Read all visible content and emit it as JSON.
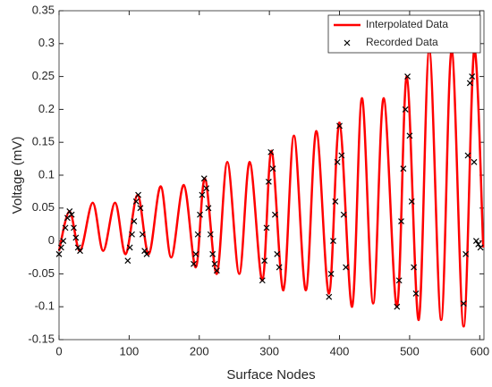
{
  "chart_data": {
    "type": "line_scatter",
    "xlabel": "Surface Nodes",
    "ylabel": "Voltage (mV)",
    "xlim": [
      0,
      606
    ],
    "xticks": [
      0,
      100,
      200,
      300,
      400,
      500,
      600
    ],
    "ylim": [
      -0.15,
      0.35
    ],
    "yticks": [
      -0.15,
      -0.1,
      -0.05,
      0,
      0.05,
      0.1,
      0.15,
      0.2,
      0.25,
      0.3,
      0.35
    ],
    "legend": "upper right",
    "series": [
      {
        "name": "Interpolated Data",
        "color": "#ff0000",
        "kind": "line",
        "x": [
          0,
          15,
          30,
          48,
          63,
          80,
          95,
          112,
          128,
          145,
          160,
          178,
          195,
          208,
          225,
          240,
          257,
          272,
          290,
          303,
          320,
          335,
          352,
          367,
          385,
          400,
          418,
          432,
          448,
          463,
          482,
          496,
          513,
          528,
          545,
          560,
          577,
          592,
          605
        ],
        "values": [
          -0.015,
          0.045,
          -0.015,
          0.058,
          -0.015,
          0.058,
          -0.02,
          0.07,
          -0.02,
          0.083,
          -0.025,
          0.085,
          -0.04,
          0.095,
          -0.05,
          0.12,
          -0.05,
          0.12,
          -0.06,
          0.137,
          -0.075,
          0.16,
          -0.075,
          0.167,
          -0.08,
          0.18,
          -0.1,
          0.217,
          -0.095,
          0.217,
          -0.1,
          0.25,
          -0.12,
          0.29,
          -0.12,
          0.29,
          -0.13,
          0.29,
          -0.01
        ]
      },
      {
        "name": "Recorded Data",
        "color": "#000000",
        "kind": "scatter",
        "x": [
          0,
          3,
          6,
          9,
          12,
          15,
          18,
          21,
          24,
          27,
          30,
          98,
          101,
          104,
          107,
          110,
          113,
          116,
          119,
          122,
          125,
          192,
          195,
          198,
          201,
          204,
          207,
          210,
          213,
          216,
          219,
          222,
          225,
          290,
          293,
          296,
          299,
          302,
          305,
          308,
          311,
          314,
          385,
          388,
          391,
          394,
          397,
          400,
          403,
          406,
          409,
          482,
          485,
          488,
          491,
          494,
          497,
          500,
          503,
          506,
          509,
          577,
          580,
          583,
          586,
          589,
          592,
          595,
          598,
          601
        ],
        "values": [
          -0.02,
          -0.01,
          0,
          0.02,
          0.035,
          0.045,
          0.04,
          0.02,
          0.005,
          -0.01,
          -0.015,
          -0.03,
          -0.01,
          0.01,
          0.03,
          0.06,
          0.07,
          0.05,
          0.01,
          -0.015,
          -0.02,
          -0.035,
          -0.02,
          0.01,
          0.04,
          0.07,
          0.095,
          0.08,
          0.05,
          0.01,
          -0.02,
          -0.035,
          -0.045,
          -0.06,
          -0.03,
          0.02,
          0.09,
          0.135,
          0.11,
          0.04,
          -0.02,
          -0.04,
          -0.085,
          -0.05,
          0,
          0.06,
          0.12,
          0.175,
          0.13,
          0.04,
          -0.04,
          -0.1,
          -0.06,
          0.03,
          0.11,
          0.2,
          0.25,
          0.16,
          0.06,
          -0.04,
          -0.08,
          -0.095,
          -0.02,
          0.13,
          0.24,
          0.25,
          0.12,
          0,
          -0.005,
          -0.01
        ]
      }
    ]
  }
}
